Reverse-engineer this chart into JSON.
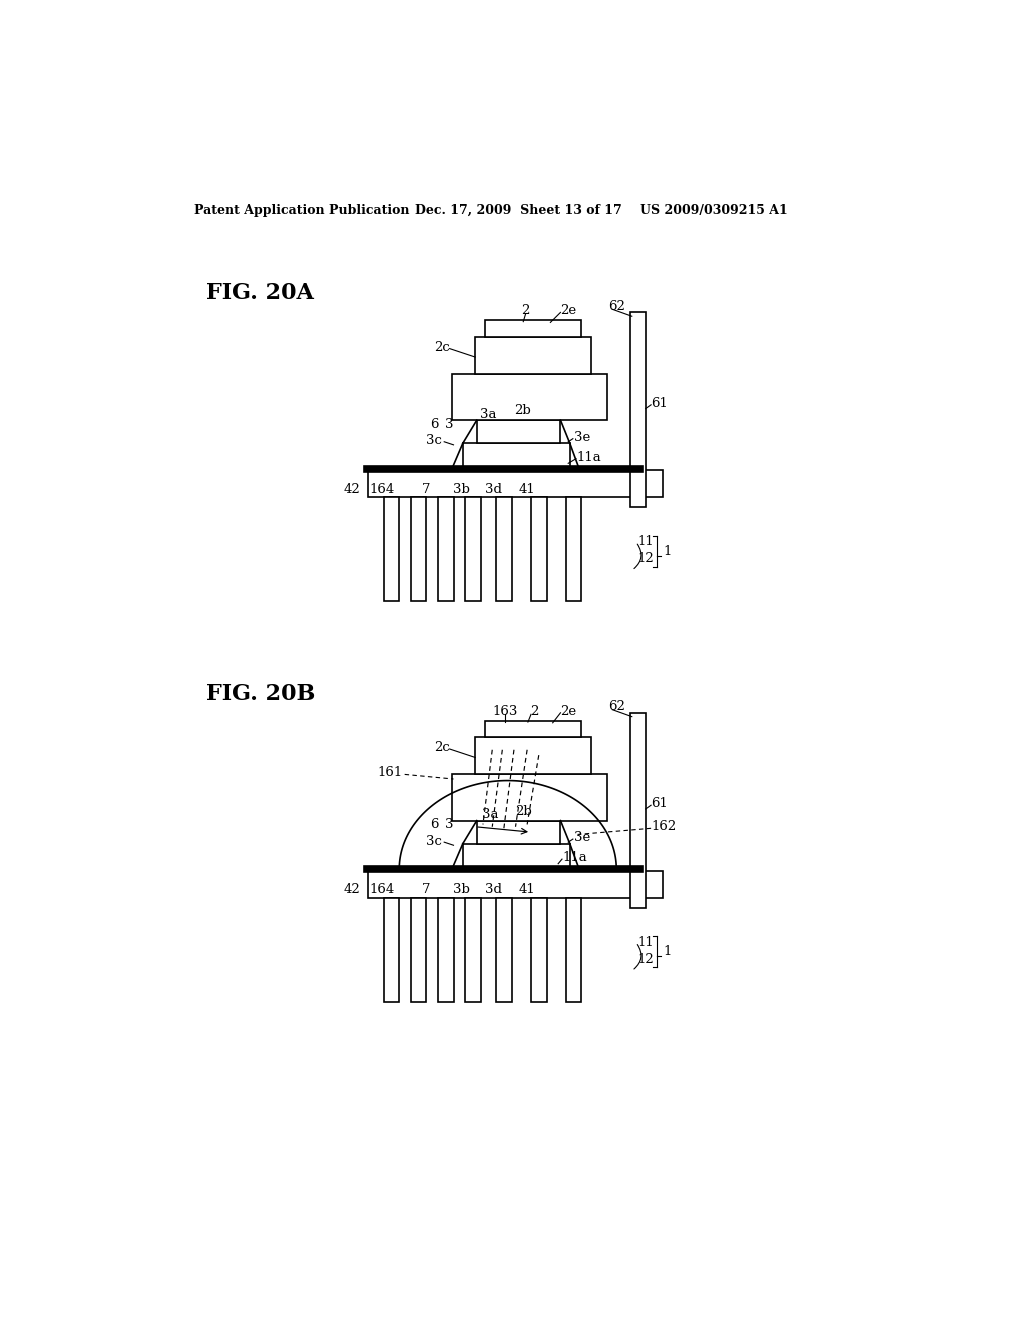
{
  "bg_color": "#ffffff",
  "header_left": "Patent Application Publication",
  "header_mid": "Dec. 17, 2009  Sheet 13 of 17",
  "header_right": "US 2009/0309215 A1",
  "fig_a_label": "FIG. 20A",
  "fig_b_label": "FIG. 20B"
}
